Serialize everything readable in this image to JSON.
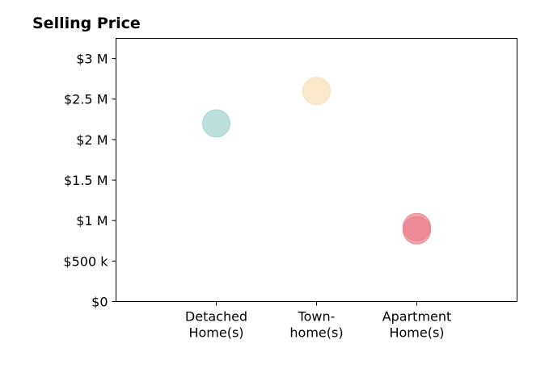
{
  "chart_data": {
    "type": "scatter",
    "title": "Selling Price",
    "xlabel": "",
    "ylabel": "",
    "categories": [
      [
        "Detached",
        "Home(s)"
      ],
      [
        "Town-",
        "home(s)"
      ],
      [
        "Apartment",
        "Home(s)"
      ]
    ],
    "yticks": [
      {
        "value": 0,
        "label": "$0"
      },
      {
        "value": 500000,
        "label": "$500 k"
      },
      {
        "value": 1000000,
        "label": "$1 M"
      },
      {
        "value": 1500000,
        "label": "$1.5 M"
      },
      {
        "value": 2000000,
        "label": "$2 M"
      },
      {
        "value": 2500000,
        "label": "$2.5 M"
      },
      {
        "value": 3000000,
        "label": "$3 M"
      }
    ],
    "ylim": [
      0,
      3250000
    ],
    "grid": false,
    "legend": "none",
    "points": [
      {
        "category": 0,
        "value": 2200000,
        "color": "#9fd4cd"
      },
      {
        "category": 1,
        "value": 2600000,
        "color": "#f6dfb4"
      },
      {
        "category": 2,
        "value": 920000,
        "color": "#e9808d"
      },
      {
        "category": 2,
        "value": 880000,
        "color": "#e9808d"
      }
    ]
  }
}
